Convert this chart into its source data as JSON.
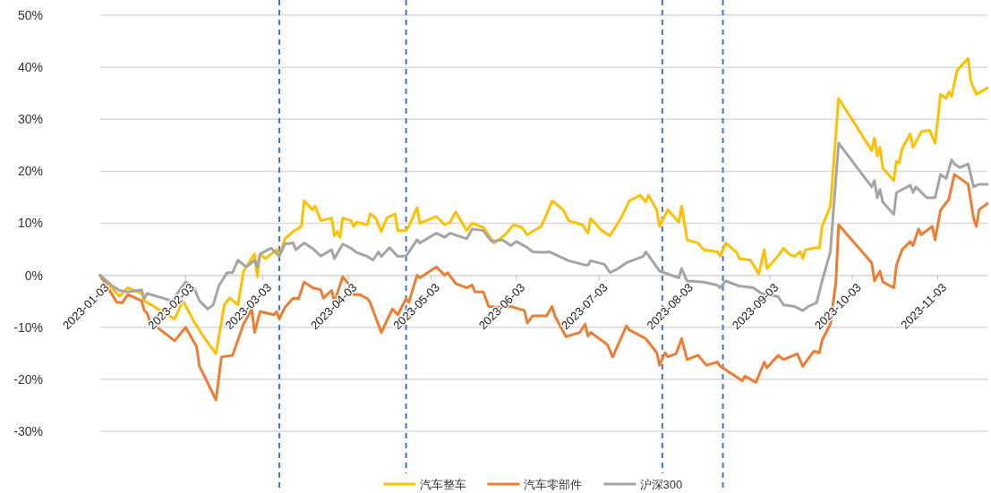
{
  "chart_data": {
    "type": "line",
    "xlim": [
      "2023-01-03",
      "2023-11-21"
    ],
    "xticks": [
      "2023-01-03",
      "2023-02-03",
      "2023-03-03",
      "2023-04-03",
      "2023-05-03",
      "2023-06-03",
      "2023-07-03",
      "2023-08-03",
      "2023-09-03",
      "2023-10-03",
      "2023-11-03"
    ],
    "ylim": [
      -30,
      50
    ],
    "yticks": [
      {
        "value": -30,
        "label": "-30%"
      },
      {
        "value": -20,
        "label": "-20%"
      },
      {
        "value": -10,
        "label": "-10%"
      },
      {
        "value": 0,
        "label": "0%"
      },
      {
        "value": 10,
        "label": "10%"
      },
      {
        "value": 20,
        "label": "20%"
      },
      {
        "value": 30,
        "label": "30%"
      },
      {
        "value": 40,
        "label": "40%"
      },
      {
        "value": 50,
        "label": "50%"
      }
    ],
    "grid": "y",
    "legend": "bottom",
    "ref_lines": [
      {
        "axis": "x",
        "value": "2023-03-09",
        "color": "#4472c4",
        "line_style": "dashed"
      },
      {
        "axis": "x",
        "value": "2023-04-24",
        "color": "#4472c4",
        "line_style": "dashed"
      },
      {
        "axis": "x",
        "value": "2023-07-26",
        "color": "#4472c4",
        "line_style": "dashed"
      },
      {
        "axis": "x",
        "value": "2023-08-17",
        "color": "#4472c4",
        "line_style": "dashed"
      }
    ],
    "series": [
      {
        "name": "汽车整车",
        "color": "#ffc000",
        "x": [
          "2023-01-03",
          "2023-01-10",
          "2023-01-13",
          "2023-01-18",
          "2023-01-19",
          "2023-01-30",
          "2023-02-02",
          "2023-02-06",
          "2023-02-10",
          "2023-02-14",
          "2023-02-17",
          "2023-02-19",
          "2023-02-22",
          "2023-02-24",
          "2023-02-28",
          "2023-03-01",
          "2023-03-02",
          "2023-03-04",
          "2023-03-08",
          "2023-03-09",
          "2023-03-11",
          "2023-03-14",
          "2023-03-17",
          "2023-03-18",
          "2023-03-21",
          "2023-03-22",
          "2023-03-24",
          "2023-03-28",
          "2023-03-29",
          "2023-03-30",
          "2023-03-31",
          "2023-04-01",
          "2023-04-04",
          "2023-04-05",
          "2023-04-06",
          "2023-04-10",
          "2023-04-11",
          "2023-04-13",
          "2023-04-15",
          "2023-04-17",
          "2023-04-20",
          "2023-04-21",
          "2023-04-24",
          "2023-04-25",
          "2023-04-28",
          "2023-04-29",
          "2023-05-05",
          "2023-05-08",
          "2023-05-10",
          "2023-05-12",
          "2023-05-16",
          "2023-05-18",
          "2023-05-22",
          "2023-05-26",
          "2023-05-30",
          "2023-06-02",
          "2023-06-05",
          "2023-06-07",
          "2023-06-12",
          "2023-06-13",
          "2023-06-16",
          "2023-06-20",
          "2023-06-22",
          "2023-06-27",
          "2023-06-29",
          "2023-06-30",
          "2023-07-04",
          "2023-07-07",
          "2023-07-11",
          "2023-07-14",
          "2023-07-18",
          "2023-07-20",
          "2023-07-21",
          "2023-07-24",
          "2023-07-25",
          "2023-07-28",
          "2023-08-01",
          "2023-08-02",
          "2023-08-04",
          "2023-08-08",
          "2023-08-10",
          "2023-08-15",
          "2023-08-16",
          "2023-08-18",
          "2023-08-22",
          "2023-08-23",
          "2023-08-27",
          "2023-08-30",
          "2023-09-01",
          "2023-09-02",
          "2023-09-06",
          "2023-09-08",
          "2023-09-10",
          "2023-09-12",
          "2023-09-14",
          "2023-09-15",
          "2023-09-16",
          "2023-09-20",
          "2023-09-21",
          "2023-09-22",
          "2023-09-25",
          "2023-09-28",
          "2023-10-10",
          "2023-10-11",
          "2023-10-12",
          "2023-10-13",
          "2023-10-14",
          "2023-10-18",
          "2023-10-19",
          "2023-10-20",
          "2023-10-21",
          "2023-10-24",
          "2023-10-25",
          "2023-10-28",
          "2023-10-31",
          "2023-11-02",
          "2023-11-04",
          "2023-11-06",
          "2023-11-07",
          "2023-11-08",
          "2023-11-10",
          "2023-11-14",
          "2023-11-15",
          "2023-11-17",
          "2023-11-21"
        ],
        "values": [
          0,
          -4.0,
          -2.4,
          -3.5,
          -4.9,
          -8.4,
          -4.9,
          -8.9,
          -12.2,
          -15.1,
          -5.7,
          -4.4,
          -5.7,
          0.8,
          4.1,
          -0.3,
          4.1,
          3.2,
          4.9,
          3.6,
          7.0,
          8.4,
          9.4,
          14.3,
          12.6,
          13.3,
          10.5,
          11.0,
          7.6,
          8.4,
          7.3,
          11.0,
          10.5,
          9.4,
          10.2,
          9.7,
          11.8,
          11.0,
          8.4,
          11.0,
          11.8,
          8.6,
          8.6,
          9.4,
          13.0,
          10.0,
          11.3,
          9.7,
          10.2,
          12.2,
          8.6,
          10.0,
          9.2,
          6.2,
          7.8,
          9.7,
          9.2,
          7.8,
          9.4,
          10.5,
          14.3,
          12.6,
          10.5,
          9.7,
          8.1,
          10.9,
          8.6,
          7.6,
          11.0,
          14.3,
          15.4,
          14.1,
          15.4,
          12.5,
          9.4,
          12.6,
          10.2,
          13.3,
          6.8,
          6.2,
          4.9,
          4.5,
          3.7,
          6.2,
          4.4,
          3.2,
          2.9,
          0.3,
          4.9,
          1.3,
          3.7,
          5.2,
          4.1,
          3.6,
          4.5,
          3.2,
          4.9,
          5.3,
          5.2,
          9.4,
          13.3,
          34.0,
          24.0,
          26.4,
          23.0,
          24.6,
          20.6,
          18.2,
          21.9,
          21.6,
          24.3,
          27.2,
          24.6,
          27.6,
          27.9,
          25.4,
          34.8,
          34.0,
          35.3,
          34.4,
          39.4,
          41.7,
          37.3,
          34.8,
          36.0
        ]
      },
      {
        "name": "汽车零部件",
        "color": "#ed7d31",
        "x": [
          "2023-01-03",
          "2023-01-09",
          "2023-01-11",
          "2023-01-13",
          "2023-01-18",
          "2023-01-19",
          "2023-01-20",
          "2023-01-21",
          "2023-01-30",
          "2023-02-03",
          "2023-02-07",
          "2023-02-08",
          "2023-02-11",
          "2023-02-14",
          "2023-02-16",
          "2023-02-20",
          "2023-02-24",
          "2023-02-27",
          "2023-02-28",
          "2023-03-02",
          "2023-03-07",
          "2023-03-08",
          "2023-03-09",
          "2023-03-11",
          "2023-03-14",
          "2023-03-16",
          "2023-03-18",
          "2023-03-21",
          "2023-03-24",
          "2023-03-25",
          "2023-03-28",
          "2023-03-29",
          "2023-04-01",
          "2023-04-03",
          "2023-04-05",
          "2023-04-07",
          "2023-04-10",
          "2023-04-11",
          "2023-04-15",
          "2023-04-19",
          "2023-04-21",
          "2023-04-24",
          "2023-04-25",
          "2023-04-28",
          "2023-04-29",
          "2023-05-05",
          "2023-05-08",
          "2023-05-09",
          "2023-05-12",
          "2023-05-16",
          "2023-05-18",
          "2023-05-19",
          "2023-05-22",
          "2023-05-24",
          "2023-05-29",
          "2023-06-01",
          "2023-06-06",
          "2023-06-07",
          "2023-06-09",
          "2023-06-14",
          "2023-06-16",
          "2023-06-17",
          "2023-06-21",
          "2023-06-26",
          "2023-06-28",
          "2023-06-29",
          "2023-06-30",
          "2023-07-06",
          "2023-07-08",
          "2023-07-13",
          "2023-07-14",
          "2023-07-20",
          "2023-07-24",
          "2023-07-25",
          "2023-07-27",
          "2023-07-28",
          "2023-07-31",
          "2023-08-02",
          "2023-08-04",
          "2023-08-08",
          "2023-08-11",
          "2023-08-15",
          "2023-08-16",
          "2023-08-24",
          "2023-08-25",
          "2023-08-29",
          "2023-09-01",
          "2023-09-02",
          "2023-09-06",
          "2023-09-08",
          "2023-09-13",
          "2023-09-15",
          "2023-09-19",
          "2023-09-21",
          "2023-09-22",
          "2023-09-25",
          "2023-09-27",
          "2023-09-28",
          "2023-10-10",
          "2023-10-11",
          "2023-10-13",
          "2023-10-14",
          "2023-10-18",
          "2023-10-19",
          "2023-10-21",
          "2023-10-24",
          "2023-10-25",
          "2023-10-27",
          "2023-10-28",
          "2023-11-01",
          "2023-11-02",
          "2023-11-04",
          "2023-11-07",
          "2023-11-09",
          "2023-11-14",
          "2023-11-16",
          "2023-11-17",
          "2023-11-18",
          "2023-11-21"
        ],
        "values": [
          0,
          -5.2,
          -5.3,
          -3.7,
          -4.9,
          -6.8,
          -7.3,
          -8.9,
          -12.6,
          -10.0,
          -13.8,
          -17.5,
          -20.7,
          -24.0,
          -15.7,
          -15.4,
          -9.4,
          -6.5,
          -11.0,
          -7.0,
          -7.6,
          -7.0,
          -8.4,
          -6.2,
          -4.4,
          -4.5,
          -1.3,
          -2.4,
          -2.8,
          -4.4,
          -2.9,
          -5.2,
          -0.3,
          -1.6,
          -3.7,
          -3.7,
          -4.5,
          -5.3,
          -11.0,
          -6.5,
          -7.6,
          -4.5,
          -5.2,
          0,
          -0.5,
          1.6,
          0,
          0.5,
          -1.6,
          -2.4,
          -1.9,
          -3.2,
          -3.2,
          -6.0,
          -6.2,
          -6.0,
          -6.8,
          -9.2,
          -7.8,
          -7.8,
          -6.0,
          -7.8,
          -11.8,
          -11.0,
          -9.4,
          -11.7,
          -11.0,
          -13.3,
          -15.7,
          -9.7,
          -10.5,
          -12.2,
          -14.9,
          -17.3,
          -14.9,
          -15.7,
          -15.1,
          -12.2,
          -16.2,
          -15.4,
          -17.3,
          -16.7,
          -17.5,
          -20.3,
          -19.4,
          -20.6,
          -16.7,
          -17.8,
          -15.4,
          -16.2,
          -15.1,
          -17.5,
          -14.6,
          -14.9,
          -12.5,
          -9.4,
          -1.3,
          9.7,
          2.4,
          -1.1,
          0.8,
          -1.3,
          -2.4,
          1.9,
          4.9,
          6.5,
          5.7,
          8.9,
          7.8,
          9.4,
          6.8,
          12.5,
          14.6,
          19.4,
          17.5,
          10.9,
          9.4,
          12.6,
          13.8
        ]
      },
      {
        "name": "沪深300",
        "color": "#a5a5a5",
        "x": [
          "2023-01-03",
          "2023-01-07",
          "2023-01-10",
          "2023-01-13",
          "2023-01-18",
          "2023-01-19",
          "2023-01-20",
          "2023-01-29",
          "2023-02-03",
          "2023-02-06",
          "2023-02-08",
          "2023-02-11",
          "2023-02-13",
          "2023-02-15",
          "2023-02-18",
          "2023-02-20",
          "2023-02-22",
          "2023-02-25",
          "2023-02-28",
          "2023-03-01",
          "2023-03-02",
          "2023-03-06",
          "2023-03-09",
          "2023-03-11",
          "2023-03-14",
          "2023-03-15",
          "2023-03-18",
          "2023-03-21",
          "2023-03-24",
          "2023-03-28",
          "2023-03-29",
          "2023-04-01",
          "2023-04-04",
          "2023-04-06",
          "2023-04-10",
          "2023-04-12",
          "2023-04-14",
          "2023-04-15",
          "2023-04-18",
          "2023-04-21",
          "2023-04-24",
          "2023-04-28",
          "2023-04-29",
          "2023-05-05",
          "2023-05-08",
          "2023-05-10",
          "2023-05-16",
          "2023-05-18",
          "2023-05-22",
          "2023-05-25",
          "2023-05-29",
          "2023-06-01",
          "2023-06-03",
          "2023-06-07",
          "2023-06-09",
          "2023-06-13",
          "2023-06-15",
          "2023-06-22",
          "2023-06-27",
          "2023-06-29",
          "2023-06-30",
          "2023-07-05",
          "2023-07-07",
          "2023-07-10",
          "2023-07-13",
          "2023-07-19",
          "2023-07-20",
          "2023-07-25",
          "2023-08-01",
          "2023-08-02",
          "2023-08-04",
          "2023-08-10",
          "2023-08-15",
          "2023-08-16",
          "2023-08-18",
          "2023-08-23",
          "2023-08-28",
          "2023-08-31",
          "2023-09-06",
          "2023-09-08",
          "2023-09-12",
          "2023-09-15",
          "2023-09-17",
          "2023-09-20",
          "2023-09-22",
          "2023-09-25",
          "2023-09-26",
          "2023-09-28",
          "2023-10-10",
          "2023-10-11",
          "2023-10-12",
          "2023-10-13",
          "2023-10-14",
          "2023-10-18",
          "2023-10-19",
          "2023-10-24",
          "2023-10-25",
          "2023-10-26",
          "2023-10-30",
          "2023-11-02",
          "2023-11-04",
          "2023-11-06",
          "2023-11-08",
          "2023-11-09",
          "2023-11-11",
          "2023-11-14",
          "2023-11-16",
          "2023-11-18",
          "2023-11-21"
        ],
        "values": [
          0,
          -1.9,
          -2.9,
          -3.2,
          -2.8,
          -4.5,
          -3.5,
          -4.9,
          -1.3,
          -2.4,
          -4.9,
          -6.5,
          -5.7,
          -2.1,
          0.5,
          0.5,
          2.9,
          1.6,
          2.9,
          1.6,
          4.1,
          5.2,
          3.7,
          6.0,
          6.2,
          4.9,
          6.2,
          5.2,
          3.7,
          4.9,
          3.2,
          6.0,
          5.2,
          4.4,
          3.6,
          2.9,
          4.5,
          3.6,
          5.3,
          3.6,
          3.7,
          6.8,
          6.2,
          8.1,
          7.3,
          8.1,
          7.0,
          8.9,
          8.6,
          6.5,
          6.8,
          5.7,
          6.5,
          5.3,
          4.5,
          4.4,
          4.5,
          2.8,
          2.1,
          1.9,
          2.8,
          2.1,
          0.5,
          1.3,
          2.4,
          3.6,
          4.5,
          0.8,
          -0.5,
          1.3,
          -1.1,
          -1.3,
          -1.9,
          -2.4,
          -1.1,
          -2.1,
          -2.4,
          -3.5,
          -4.1,
          -5.7,
          -6.0,
          -6.8,
          -6.0,
          -5.3,
          -1.1,
          4.5,
          11.7,
          25.4,
          17.0,
          18.2,
          14.9,
          16.5,
          14.1,
          11.7,
          15.9,
          17.3,
          15.9,
          17.0,
          14.9,
          14.9,
          19.4,
          18.6,
          22.2,
          21.4,
          20.7,
          21.4,
          17.0,
          17.5,
          17.5
        ]
      }
    ]
  }
}
